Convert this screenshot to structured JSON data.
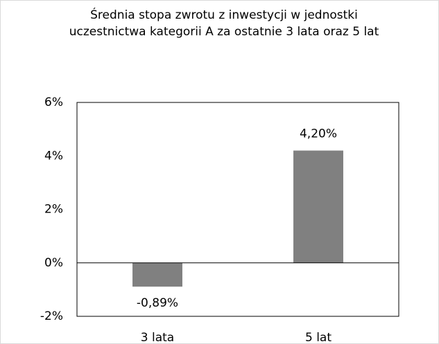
{
  "chart_data": {
    "type": "bar",
    "title": "Średnia stopa zwrotu z inwestycji w jednostki uczestnictwa kategorii A za ostatnie 3 lata oraz 5 lat",
    "categories": [
      "3 lata",
      "5 lat"
    ],
    "values": [
      -0.89,
      4.2
    ],
    "value_labels": [
      "-0,89%",
      "4,20%"
    ],
    "color": "#808080",
    "ylim": [
      -2,
      6
    ],
    "yticks": [
      {
        "value": -2,
        "label": "-2%"
      },
      {
        "value": 0,
        "label": "0%"
      },
      {
        "value": 2,
        "label": "2%"
      },
      {
        "value": 4,
        "label": "4%"
      },
      {
        "value": 6,
        "label": "6%"
      }
    ]
  }
}
